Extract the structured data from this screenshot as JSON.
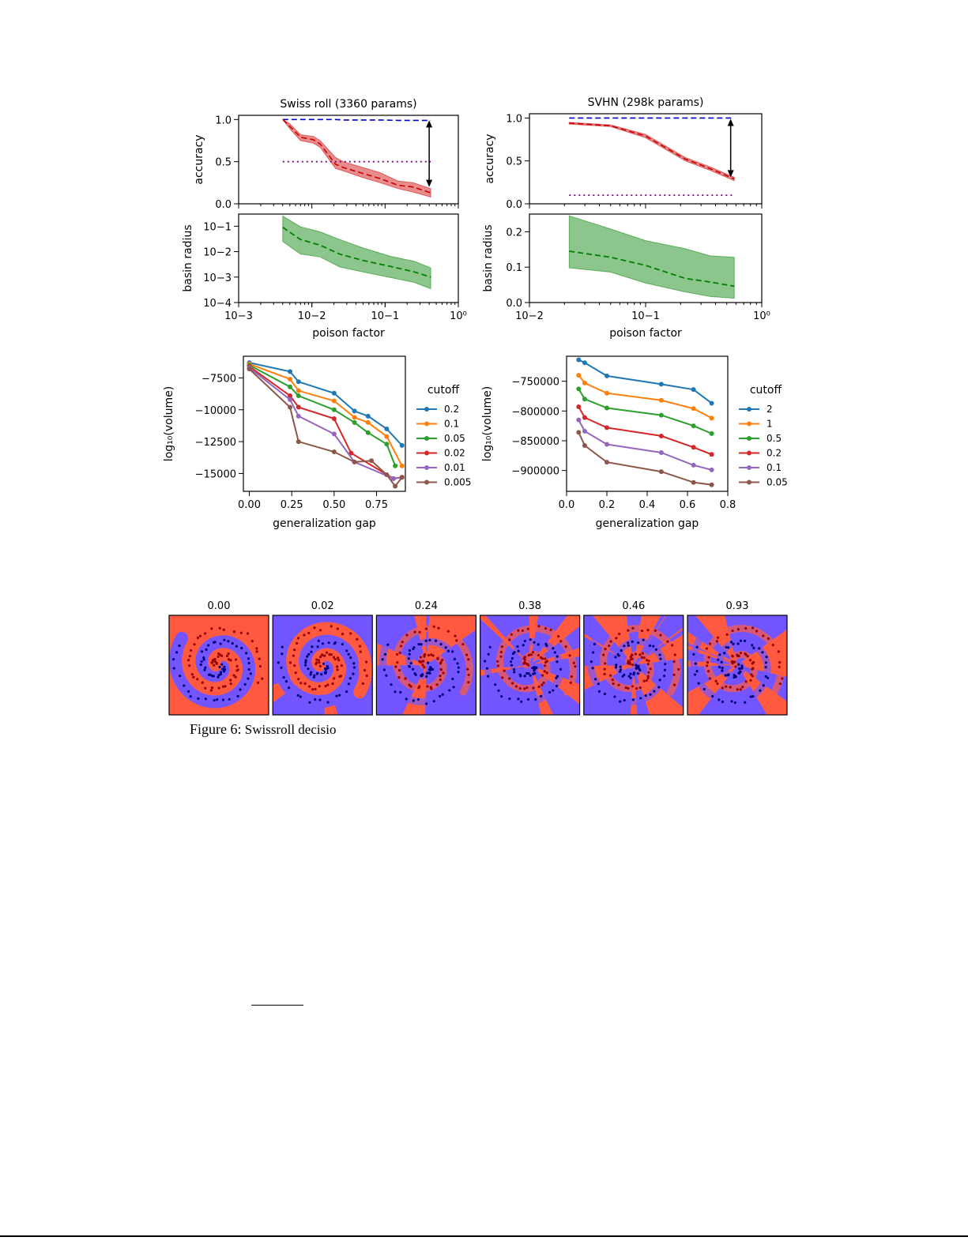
{
  "caption": {
    "label": "Figure 6:",
    "text": "Swissroll decisio"
  },
  "chart_data": [
    {
      "id": "swiss-acc",
      "type": "line",
      "title": "Swiss roll (3360 params)",
      "xscale": "log",
      "xlim": [
        0.001,
        1
      ],
      "ylim": [
        0,
        1.05
      ],
      "ylabel": "accuracy",
      "yticks": [
        0,
        0.5,
        1.0
      ],
      "ytick_labels": [
        "0.0",
        "0.5",
        "1.0"
      ],
      "x": [
        0.004,
        0.005,
        0.007,
        0.0105,
        0.013,
        0.021,
        0.027,
        0.05,
        0.085,
        0.15,
        0.24,
        0.42
      ],
      "series": [
        {
          "name": "train",
          "color": "#0000cc",
          "style": "dashed",
          "values": [
            1.0,
            1.0,
            1.0,
            1.0,
            1.0,
            1.0,
            0.995,
            0.995,
            0.995,
            0.99,
            0.99,
            0.99
          ]
        },
        {
          "name": "test",
          "color": "#cc0000",
          "style": "dashed",
          "values": [
            1.0,
            0.92,
            0.79,
            0.76,
            0.71,
            0.47,
            0.43,
            0.36,
            0.3,
            0.22,
            0.2,
            0.13
          ],
          "band_upper": [
            1.0,
            0.95,
            0.82,
            0.8,
            0.75,
            0.55,
            0.5,
            0.43,
            0.37,
            0.27,
            0.25,
            0.18
          ],
          "band_lower": [
            1.0,
            0.89,
            0.75,
            0.72,
            0.67,
            0.42,
            0.39,
            0.31,
            0.25,
            0.18,
            0.14,
            0.08
          ]
        },
        {
          "name": "chance",
          "color": "#800080",
          "style": "dotted",
          "x": [
            0.004,
            0.42
          ],
          "values": [
            0.5,
            0.5
          ]
        }
      ],
      "arrow": {
        "x": 0.4,
        "from": 0.99,
        "to": 0.2
      }
    },
    {
      "id": "swiss-basin",
      "type": "line",
      "xscale": "log",
      "yscale": "log",
      "xlim": [
        0.001,
        1
      ],
      "ylim": [
        0.0001,
        0.3
      ],
      "ylabel": "basin radius",
      "xlabel": "poison factor",
      "xticks": [
        0.001,
        0.01,
        0.1,
        1
      ],
      "xtick_labels": [
        "10−3",
        "10−2",
        "10−1",
        "10⁰"
      ],
      "yticks": [
        0.0001,
        0.001,
        0.01,
        0.1
      ],
      "ytick_labels": [
        "10−4",
        "10−3",
        "10−2",
        "10−1"
      ],
      "x": [
        0.004,
        0.007,
        0.013,
        0.024,
        0.05,
        0.12,
        0.25,
        0.42
      ],
      "series": [
        {
          "name": "basin",
          "color": "#008000",
          "style": "dashed",
          "values": [
            0.09,
            0.03,
            0.018,
            0.008,
            0.0045,
            0.0026,
            0.0016,
            0.001
          ],
          "band_upper": [
            0.25,
            0.095,
            0.06,
            0.03,
            0.014,
            0.0065,
            0.0042,
            0.0023
          ],
          "band_lower": [
            0.025,
            0.008,
            0.0062,
            0.0025,
            0.0016,
            0.00095,
            0.00062,
            0.00035
          ]
        }
      ]
    },
    {
      "id": "svhn-acc",
      "type": "line",
      "title": "SVHN (298k params)",
      "xscale": "log",
      "xlim": [
        0.01,
        1
      ],
      "ylim": [
        0,
        1.05
      ],
      "ylabel": "accuracy",
      "yticks": [
        0,
        0.5,
        1.0
      ],
      "ytick_labels": [
        "0.0",
        "0.5",
        "1.0"
      ],
      "x": [
        0.022,
        0.05,
        0.1,
        0.22,
        0.36,
        0.58
      ],
      "series": [
        {
          "name": "train",
          "color": "#0000cc",
          "style": "dashed",
          "values": [
            1.0,
            1.0,
            1.0,
            1.0,
            1.0,
            1.0
          ]
        },
        {
          "name": "test",
          "color": "#cc0000",
          "style": "dashed",
          "values": [
            0.94,
            0.91,
            0.79,
            0.52,
            0.41,
            0.29
          ],
          "band_upper": [
            0.95,
            0.92,
            0.81,
            0.54,
            0.43,
            0.31
          ],
          "band_lower": [
            0.93,
            0.9,
            0.77,
            0.5,
            0.39,
            0.27
          ]
        },
        {
          "name": "chance",
          "color": "#800080",
          "style": "dotted",
          "x": [
            0.022,
            0.58
          ],
          "values": [
            0.1,
            0.1
          ]
        }
      ],
      "arrow": {
        "x": 0.54,
        "from": 0.99,
        "to": 0.31
      }
    },
    {
      "id": "svhn-basin",
      "type": "line",
      "xscale": "log",
      "xlim": [
        0.01,
        1
      ],
      "ylim": [
        0,
        0.25
      ],
      "ylabel": "basin radius",
      "xlabel": "poison factor",
      "xticks": [
        0.01,
        0.1,
        1
      ],
      "xtick_labels": [
        "10−2",
        "10−1",
        "10⁰"
      ],
      "yticks": [
        0,
        0.1,
        0.2
      ],
      "ytick_labels": [
        "0.0",
        "0.1",
        "0.2"
      ],
      "x": [
        0.022,
        0.05,
        0.1,
        0.22,
        0.36,
        0.58
      ],
      "series": [
        {
          "name": "basin",
          "color": "#008000",
          "style": "dashed",
          "values": [
            0.145,
            0.128,
            0.105,
            0.068,
            0.058,
            0.046
          ],
          "band_upper": [
            0.245,
            0.208,
            0.175,
            0.152,
            0.132,
            0.128
          ],
          "band_lower": [
            0.098,
            0.086,
            0.055,
            0.03,
            0.017,
            0.012
          ]
        }
      ]
    },
    {
      "id": "swiss-volume",
      "type": "line",
      "xlim": [
        -0.035,
        0.92
      ],
      "ylim": [
        -16400,
        -5800
      ],
      "xlabel": "generalization gap",
      "ylabel": "log₁₀(volume)",
      "xticks": [
        0,
        0.25,
        0.5,
        0.75
      ],
      "xtick_labels": [
        "0.00",
        "0.25",
        "0.50",
        "0.75"
      ],
      "yticks": [
        -7500,
        -10000,
        -12500,
        -15000
      ],
      "ytick_labels": [
        "−7500",
        "−10000",
        "−12500",
        "−15000"
      ],
      "legend": {
        "title": "cutoff",
        "placement": "right"
      },
      "series": [
        {
          "name": "0.2",
          "color": "#1f77b4",
          "x": [
            0.0,
            0.24,
            0.29,
            0.5,
            0.62,
            0.7,
            0.81,
            0.9
          ],
          "values": [
            -6300,
            -7000,
            -7800,
            -8700,
            -10100,
            -10500,
            -11500,
            -12800
          ]
        },
        {
          "name": "0.1",
          "color": "#ff7f0e",
          "x": [
            0.0,
            0.24,
            0.29,
            0.5,
            0.62,
            0.7,
            0.81,
            0.9
          ],
          "values": [
            -6400,
            -7600,
            -8500,
            -9300,
            -10600,
            -11000,
            -12100,
            -14400
          ]
        },
        {
          "name": "0.05",
          "color": "#2ca02c",
          "x": [
            0.0,
            0.24,
            0.29,
            0.5,
            0.62,
            0.7,
            0.81,
            0.86
          ],
          "values": [
            -6500,
            -8200,
            -8900,
            -10000,
            -11000,
            -11800,
            -12700,
            -14400
          ]
        },
        {
          "name": "0.02",
          "color": "#d62728",
          "x": [
            0.0,
            0.24,
            0.29,
            0.5,
            0.6,
            0.85,
            0.9
          ],
          "values": [
            -6600,
            -8900,
            -9800,
            -10700,
            -13400,
            -15400,
            -15300
          ]
        },
        {
          "name": "0.01",
          "color": "#9467bd",
          "x": [
            0.0,
            0.24,
            0.29,
            0.5,
            0.62,
            0.85,
            0.9
          ],
          "values": [
            -6700,
            -9200,
            -10500,
            -11900,
            -14100,
            -15400,
            -15300
          ]
        },
        {
          "name": "0.005",
          "color": "#8c564b",
          "x": [
            0.0,
            0.24,
            0.29,
            0.5,
            0.62,
            0.72,
            0.81,
            0.86,
            0.9
          ],
          "values": [
            -6800,
            -9800,
            -12500,
            -13300,
            -14100,
            -14000,
            -15100,
            -16000,
            -15300
          ]
        }
      ]
    },
    {
      "id": "svhn-volume",
      "type": "line",
      "xlim": [
        0.0,
        0.8
      ],
      "ylim": [
        -935000,
        -708000
      ],
      "xlabel": "generalization gap",
      "ylabel": "log₁₀(volume)",
      "xticks": [
        0,
        0.2,
        0.4,
        0.6,
        0.8
      ],
      "xtick_labels": [
        "0.0",
        "0.2",
        "0.4",
        "0.6",
        "0.8"
      ],
      "yticks": [
        -750000,
        -800000,
        -850000,
        -900000
      ],
      "ytick_labels": [
        "−750000",
        "−800000",
        "−850000",
        "−900000"
      ],
      "legend": {
        "title": "cutoff",
        "placement": "right"
      },
      "series": [
        {
          "name": "2",
          "color": "#1f77b4",
          "x": [
            0.06,
            0.09,
            0.2,
            0.47,
            0.63,
            0.72
          ],
          "values": [
            -714000,
            -719000,
            -741000,
            -755000,
            -764000,
            -787000
          ]
        },
        {
          "name": "1",
          "color": "#ff7f0e",
          "x": [
            0.06,
            0.09,
            0.2,
            0.47,
            0.63,
            0.72
          ],
          "values": [
            -740000,
            -753000,
            -770000,
            -782000,
            -796000,
            -812000
          ]
        },
        {
          "name": "0.5",
          "color": "#2ca02c",
          "x": [
            0.06,
            0.09,
            0.2,
            0.47,
            0.63,
            0.72
          ],
          "values": [
            -763000,
            -780000,
            -795000,
            -807000,
            -825000,
            -838000
          ]
        },
        {
          "name": "0.2",
          "color": "#d62728",
          "x": [
            0.06,
            0.09,
            0.2,
            0.47,
            0.63,
            0.72
          ],
          "values": [
            -793000,
            -811000,
            -828000,
            -842000,
            -861000,
            -873000
          ]
        },
        {
          "name": "0.1",
          "color": "#9467bd",
          "x": [
            0.06,
            0.09,
            0.2,
            0.47,
            0.63,
            0.72
          ],
          "values": [
            -815000,
            -834000,
            -856000,
            -870000,
            -891000,
            -899000
          ]
        },
        {
          "name": "0.05",
          "color": "#8c564b",
          "x": [
            0.06,
            0.09,
            0.2,
            0.47,
            0.63,
            0.72
          ],
          "values": [
            -836000,
            -858000,
            -886000,
            -902000,
            -920000,
            -924000
          ]
        }
      ]
    },
    {
      "id": "decision-boundaries",
      "type": "image-grid",
      "panel_titles": [
        "0.00",
        "0.02",
        "0.24",
        "0.38",
        "0.46",
        "0.93"
      ],
      "colors": {
        "class_a": "#ff5a40",
        "class_b": "#7355ff",
        "points_a": "#990000",
        "points_b": "#00007a"
      }
    }
  ]
}
